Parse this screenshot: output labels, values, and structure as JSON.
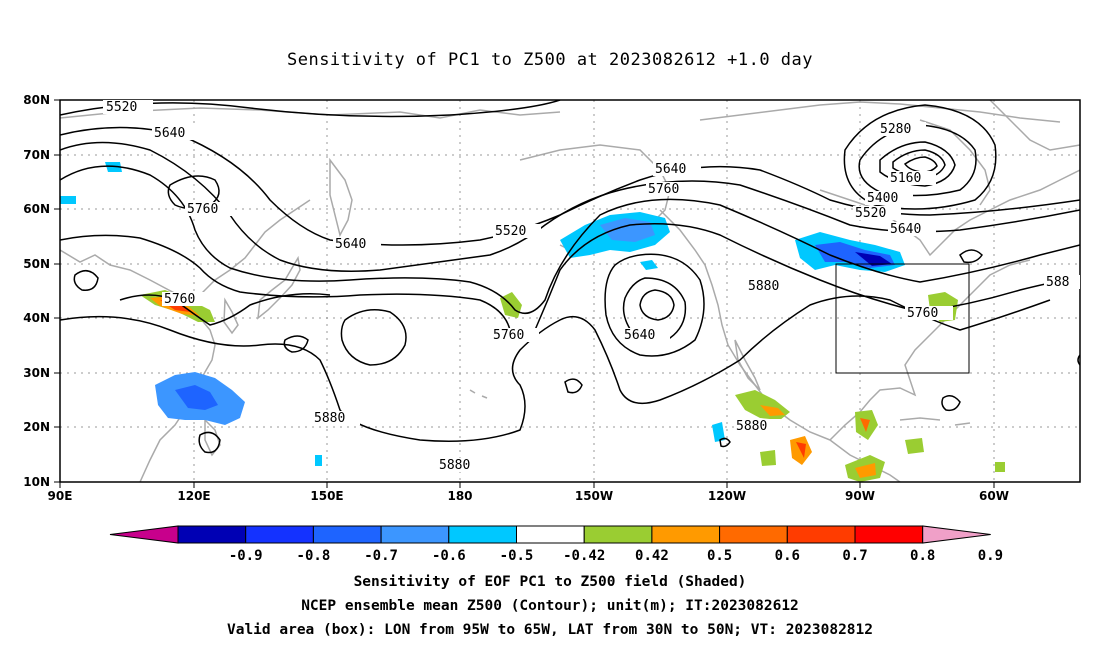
{
  "title": "Sensitivity of PC1 to Z500 at 2023082612 +1.0 day",
  "map": {
    "lat_labels": [
      "80N",
      "70N",
      "60N",
      "50N",
      "40N",
      "30N",
      "20N",
      "10N"
    ],
    "lon_labels": [
      "90E",
      "120E",
      "150E",
      "180",
      "150W",
      "120W",
      "90W",
      "60W"
    ],
    "contour_labels": [
      "5520",
      "5640",
      "5760",
      "5640",
      "5760",
      "5520",
      "5640",
      "5760",
      "5760",
      "5640",
      "5760",
      "5880",
      "5880",
      "5880",
      "5280",
      "5160",
      "5400",
      "5520",
      "5640",
      "5760",
      "588",
      "5880"
    ],
    "valid_box": {
      "lon_min": -95,
      "lon_max": -65,
      "lat_min": 30,
      "lat_max": 50
    }
  },
  "colorbar": {
    "labels": [
      "-0.9",
      "-0.8",
      "-0.7",
      "-0.6",
      "-0.5",
      "-0.42",
      "0.42",
      "0.5",
      "0.6",
      "0.7",
      "0.8",
      "0.9"
    ],
    "colors": [
      "#0000b4",
      "#1432ff",
      "#1e64ff",
      "#3c96ff",
      "#00c8ff",
      "#ffffff",
      "#9acd32",
      "#ff9a00",
      "#ff6a00",
      "#ff3c00",
      "#ff0000"
    ],
    "low_end_color": "#c8008c",
    "high_end_color": "#f0a0c8"
  },
  "captions": {
    "line1": "Sensitivity of EOF PC1 to Z500 field (Shaded)",
    "line2": "NCEP ensemble mean Z500 (Contour); unit(m); IT:2023082612",
    "line3": "Valid area (box): LON from 95W to 65W, LAT from 30N to 50N; VT: 2023082812"
  }
}
